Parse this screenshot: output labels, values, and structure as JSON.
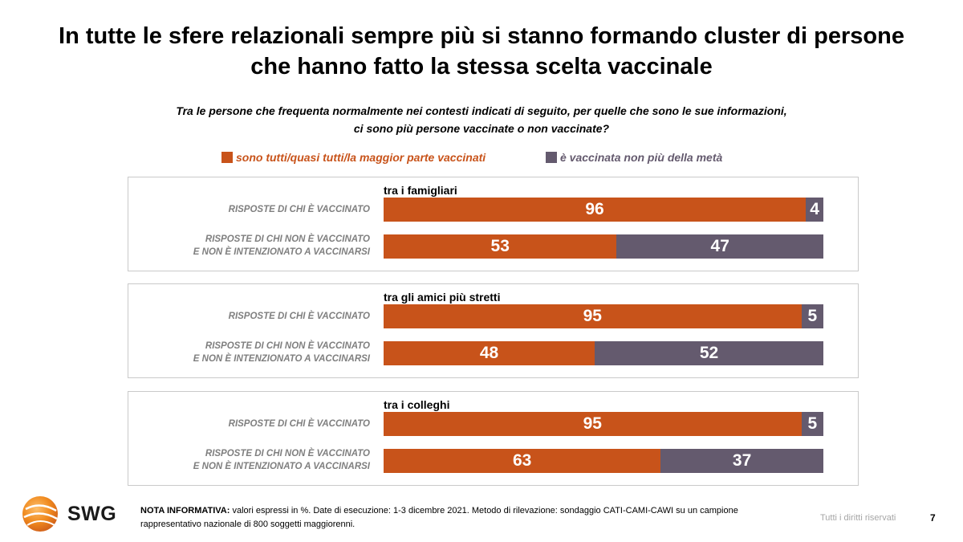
{
  "title_line1": "In tutte le sfere relazionali sempre più si stanno formando cluster di persone",
  "title_line2": "che hanno fatto la stessa scelta vaccinale",
  "subtitle_line1": "Tra le persone che frequenta normalmente nei contesti indicati di seguito, per quelle che sono le sue informazioni,",
  "subtitle_line2": "ci sono più persone vaccinate o non vaccinate?",
  "colors": {
    "vaccinated": "#C8531A",
    "not_vaccinated": "#645A6E"
  },
  "chart_data": {
    "type": "bar",
    "orientation": "horizontal-stacked-100",
    "legend": {
      "vaccinated": "sono tutti/quasi tutti/la maggior parte vaccinati",
      "not_vaccinated": "è vaccinata non più della metà",
      "placement": "top"
    },
    "row_labels": {
      "vaccinated": "RISPOSTE DI CHI È VACCINATO",
      "not_vaccinated_line1": "RISPOSTE DI CHI NON È VACCINATO",
      "not_vaccinated_line2": "E NON È INTENZIONATO A VACCINARSI"
    },
    "groups": [
      {
        "title": "tra i famigliari",
        "rows": [
          {
            "values": [
              96,
              4
            ]
          },
          {
            "values": [
              53,
              47
            ]
          }
        ]
      },
      {
        "title": "tra gli amici più stretti",
        "rows": [
          {
            "values": [
              95,
              5
            ]
          },
          {
            "values": [
              48,
              52
            ]
          }
        ]
      },
      {
        "title": "tra i colleghi",
        "rows": [
          {
            "values": [
              95,
              5
            ]
          },
          {
            "values": [
              63,
              37
            ]
          }
        ]
      }
    ],
    "xlim": [
      0,
      100
    ]
  },
  "footer": {
    "note_label": "NOTA INFORMATIVA:",
    "note_text": " valori espressi in %. Date di esecuzione: 1-3 dicembre 2021. Metodo di rilevazione: sondaggio CATI-CAMI-CAWI su un campione rappresentativo nazionale di 800 soggetti maggiorenni.",
    "logo_text": "SWG",
    "rights": "Tutti i diritti riservati",
    "page_number": "7"
  }
}
